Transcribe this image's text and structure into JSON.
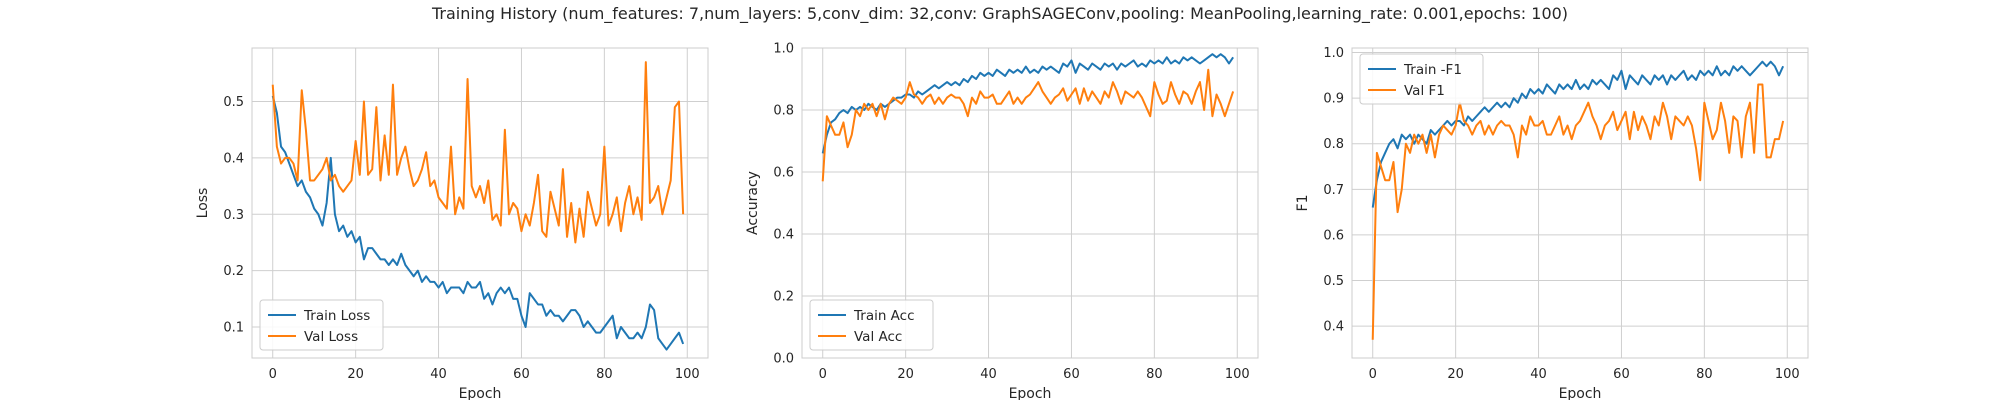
{
  "figure": {
    "title": "Training History (num_features: 7,num_layers: 5,conv_dim: 32,conv: GraphSAGEConv,pooling: MeanPooling,learning_rate: 0.001,epochs: 100)"
  },
  "chart_data": [
    {
      "type": "line",
      "xlabel": "Epoch",
      "ylabel": "Loss",
      "xlim": [
        -5,
        105
      ],
      "ylim": [
        0.045,
        0.595
      ],
      "xticks": [
        0,
        20,
        40,
        60,
        80,
        100
      ],
      "yticks": [
        0.1,
        0.2,
        0.3,
        0.4,
        0.5
      ],
      "ytick_labels": [
        "0.1",
        "0.2",
        "0.3",
        "0.4",
        "0.5"
      ],
      "grid": true,
      "legend_position": "lower left",
      "series": [
        {
          "name": "Train Loss",
          "color": "#1f77b4",
          "values": [
            0.51,
            0.48,
            0.42,
            0.41,
            0.39,
            0.37,
            0.35,
            0.36,
            0.34,
            0.33,
            0.31,
            0.3,
            0.28,
            0.32,
            0.4,
            0.3,
            0.27,
            0.28,
            0.26,
            0.27,
            0.25,
            0.26,
            0.22,
            0.24,
            0.24,
            0.23,
            0.22,
            0.22,
            0.21,
            0.22,
            0.21,
            0.23,
            0.21,
            0.2,
            0.19,
            0.2,
            0.18,
            0.19,
            0.18,
            0.18,
            0.17,
            0.18,
            0.16,
            0.17,
            0.17,
            0.17,
            0.16,
            0.18,
            0.17,
            0.17,
            0.18,
            0.15,
            0.16,
            0.14,
            0.16,
            0.17,
            0.16,
            0.17,
            0.15,
            0.15,
            0.12,
            0.1,
            0.16,
            0.15,
            0.14,
            0.14,
            0.12,
            0.13,
            0.12,
            0.12,
            0.11,
            0.12,
            0.13,
            0.13,
            0.12,
            0.1,
            0.11,
            0.1,
            0.09,
            0.09,
            0.1,
            0.11,
            0.12,
            0.08,
            0.1,
            0.09,
            0.08,
            0.08,
            0.09,
            0.08,
            0.1,
            0.14,
            0.13,
            0.08,
            0.07,
            0.06,
            0.07,
            0.08,
            0.09,
            0.07
          ]
        },
        {
          "name": "Val Loss",
          "color": "#ff7f0e",
          "values": [
            0.53,
            0.42,
            0.39,
            0.4,
            0.4,
            0.39,
            0.36,
            0.52,
            0.45,
            0.36,
            0.36,
            0.37,
            0.38,
            0.4,
            0.36,
            0.37,
            0.35,
            0.34,
            0.35,
            0.36,
            0.43,
            0.37,
            0.5,
            0.37,
            0.38,
            0.49,
            0.36,
            0.44,
            0.37,
            0.53,
            0.37,
            0.4,
            0.42,
            0.38,
            0.35,
            0.36,
            0.38,
            0.41,
            0.35,
            0.36,
            0.33,
            0.32,
            0.31,
            0.42,
            0.3,
            0.33,
            0.31,
            0.54,
            0.35,
            0.33,
            0.35,
            0.32,
            0.36,
            0.29,
            0.3,
            0.28,
            0.45,
            0.3,
            0.32,
            0.31,
            0.27,
            0.3,
            0.28,
            0.32,
            0.37,
            0.27,
            0.26,
            0.34,
            0.31,
            0.28,
            0.38,
            0.26,
            0.32,
            0.25,
            0.31,
            0.26,
            0.34,
            0.31,
            0.28,
            0.3,
            0.42,
            0.28,
            0.3,
            0.33,
            0.27,
            0.32,
            0.35,
            0.3,
            0.33,
            0.29,
            0.57,
            0.32,
            0.33,
            0.35,
            0.3,
            0.33,
            0.36,
            0.49,
            0.5,
            0.3
          ]
        }
      ]
    },
    {
      "type": "line",
      "xlabel": "Epoch",
      "ylabel": "Accuracy",
      "xlim": [
        -5,
        105
      ],
      "ylim": [
        0.0,
        1.0
      ],
      "xticks": [
        0,
        20,
        40,
        60,
        80,
        100
      ],
      "yticks": [
        0.0,
        0.2,
        0.4,
        0.6,
        0.8,
        1.0
      ],
      "ytick_labels": [
        "0.0",
        "0.2",
        "0.4",
        "0.6",
        "0.8",
        "1.0"
      ],
      "grid": true,
      "legend_position": "lower left",
      "series": [
        {
          "name": "Train Acc",
          "color": "#1f77b4",
          "values": [
            0.66,
            0.72,
            0.76,
            0.77,
            0.79,
            0.8,
            0.79,
            0.81,
            0.8,
            0.81,
            0.8,
            0.82,
            0.81,
            0.8,
            0.82,
            0.81,
            0.82,
            0.83,
            0.84,
            0.84,
            0.85,
            0.85,
            0.84,
            0.86,
            0.85,
            0.86,
            0.87,
            0.88,
            0.87,
            0.88,
            0.89,
            0.88,
            0.89,
            0.88,
            0.9,
            0.89,
            0.91,
            0.9,
            0.92,
            0.91,
            0.92,
            0.91,
            0.93,
            0.92,
            0.91,
            0.93,
            0.92,
            0.93,
            0.92,
            0.94,
            0.92,
            0.93,
            0.92,
            0.94,
            0.93,
            0.94,
            0.93,
            0.92,
            0.95,
            0.94,
            0.96,
            0.92,
            0.95,
            0.94,
            0.93,
            0.95,
            0.94,
            0.93,
            0.95,
            0.94,
            0.95,
            0.93,
            0.95,
            0.94,
            0.95,
            0.96,
            0.94,
            0.95,
            0.94,
            0.96,
            0.95,
            0.96,
            0.95,
            0.97,
            0.95,
            0.96,
            0.95,
            0.97,
            0.96,
            0.97,
            0.96,
            0.95,
            0.96,
            0.97,
            0.98,
            0.97,
            0.98,
            0.97,
            0.95,
            0.97
          ]
        },
        {
          "name": "Val Acc",
          "color": "#ff7f0e",
          "values": [
            0.57,
            0.78,
            0.75,
            0.72,
            0.72,
            0.76,
            0.68,
            0.72,
            0.8,
            0.78,
            0.82,
            0.8,
            0.82,
            0.78,
            0.82,
            0.77,
            0.82,
            0.84,
            0.83,
            0.82,
            0.84,
            0.89,
            0.85,
            0.84,
            0.82,
            0.84,
            0.85,
            0.82,
            0.84,
            0.82,
            0.84,
            0.85,
            0.84,
            0.84,
            0.82,
            0.78,
            0.84,
            0.82,
            0.86,
            0.84,
            0.84,
            0.85,
            0.82,
            0.82,
            0.84,
            0.86,
            0.82,
            0.84,
            0.82,
            0.84,
            0.85,
            0.87,
            0.89,
            0.86,
            0.84,
            0.82,
            0.84,
            0.85,
            0.87,
            0.83,
            0.85,
            0.87,
            0.82,
            0.87,
            0.83,
            0.86,
            0.84,
            0.82,
            0.86,
            0.84,
            0.89,
            0.86,
            0.82,
            0.86,
            0.85,
            0.84,
            0.86,
            0.84,
            0.81,
            0.78,
            0.89,
            0.85,
            0.82,
            0.83,
            0.89,
            0.85,
            0.82,
            0.86,
            0.85,
            0.82,
            0.86,
            0.89,
            0.8,
            0.93,
            0.78,
            0.85,
            0.82,
            0.78,
            0.82,
            0.86
          ]
        }
      ]
    },
    {
      "type": "line",
      "xlabel": "Epoch",
      "ylabel": "F1",
      "xlim": [
        -5,
        105
      ],
      "ylim": [
        0.33,
        1.01
      ],
      "xticks": [
        0,
        20,
        40,
        60,
        80,
        100
      ],
      "yticks": [
        0.4,
        0.5,
        0.6,
        0.7,
        0.8,
        0.9,
        1.0
      ],
      "ytick_labels": [
        "0.4",
        "0.5",
        "0.6",
        "0.7",
        "0.8",
        "0.9",
        "1.0"
      ],
      "grid": true,
      "legend_position": "upper left",
      "series": [
        {
          "name": "Train -F1",
          "color": "#1f77b4",
          "values": [
            0.66,
            0.72,
            0.76,
            0.78,
            0.8,
            0.81,
            0.79,
            0.82,
            0.81,
            0.82,
            0.8,
            0.82,
            0.81,
            0.8,
            0.83,
            0.82,
            0.83,
            0.84,
            0.85,
            0.84,
            0.85,
            0.85,
            0.84,
            0.86,
            0.85,
            0.86,
            0.87,
            0.88,
            0.87,
            0.88,
            0.89,
            0.88,
            0.89,
            0.88,
            0.9,
            0.89,
            0.91,
            0.9,
            0.92,
            0.91,
            0.92,
            0.91,
            0.93,
            0.92,
            0.91,
            0.93,
            0.92,
            0.93,
            0.92,
            0.94,
            0.92,
            0.93,
            0.92,
            0.94,
            0.93,
            0.94,
            0.93,
            0.92,
            0.95,
            0.94,
            0.96,
            0.92,
            0.95,
            0.94,
            0.93,
            0.95,
            0.94,
            0.93,
            0.95,
            0.94,
            0.95,
            0.93,
            0.95,
            0.94,
            0.95,
            0.96,
            0.94,
            0.95,
            0.94,
            0.96,
            0.95,
            0.96,
            0.95,
            0.97,
            0.95,
            0.96,
            0.95,
            0.97,
            0.96,
            0.97,
            0.96,
            0.95,
            0.96,
            0.97,
            0.98,
            0.97,
            0.98,
            0.97,
            0.95,
            0.97
          ]
        },
        {
          "name": "Val F1",
          "color": "#ff7f0e",
          "values": [
            0.37,
            0.78,
            0.75,
            0.72,
            0.72,
            0.76,
            0.65,
            0.7,
            0.8,
            0.78,
            0.82,
            0.8,
            0.82,
            0.78,
            0.82,
            0.77,
            0.82,
            0.84,
            0.83,
            0.82,
            0.84,
            0.89,
            0.85,
            0.84,
            0.82,
            0.84,
            0.85,
            0.82,
            0.84,
            0.82,
            0.84,
            0.85,
            0.84,
            0.84,
            0.82,
            0.77,
            0.84,
            0.82,
            0.86,
            0.84,
            0.84,
            0.85,
            0.82,
            0.82,
            0.84,
            0.86,
            0.82,
            0.84,
            0.81,
            0.84,
            0.85,
            0.87,
            0.89,
            0.86,
            0.84,
            0.81,
            0.84,
            0.85,
            0.87,
            0.83,
            0.85,
            0.87,
            0.81,
            0.87,
            0.83,
            0.86,
            0.84,
            0.81,
            0.86,
            0.84,
            0.89,
            0.86,
            0.81,
            0.86,
            0.85,
            0.84,
            0.86,
            0.84,
            0.79,
            0.72,
            0.89,
            0.85,
            0.81,
            0.83,
            0.89,
            0.85,
            0.78,
            0.86,
            0.85,
            0.77,
            0.86,
            0.89,
            0.78,
            0.93,
            0.93,
            0.77,
            0.77,
            0.81,
            0.81,
            0.85
          ]
        }
      ]
    }
  ]
}
